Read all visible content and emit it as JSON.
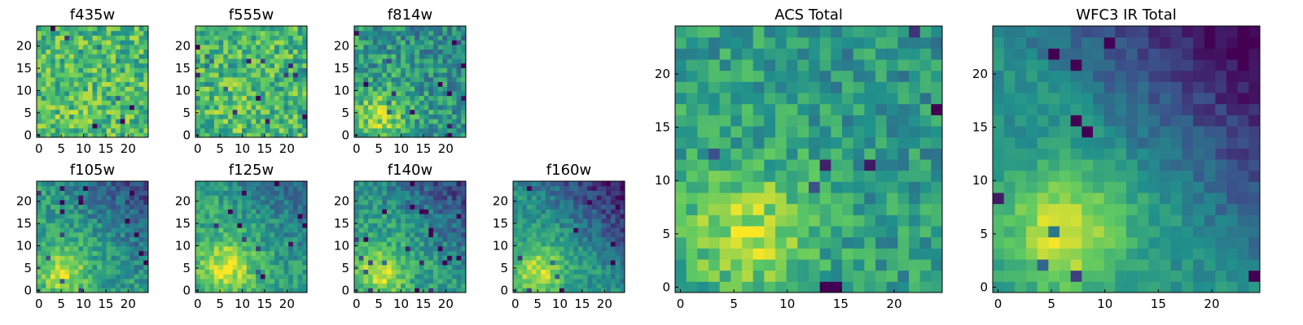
{
  "figure": {
    "colormap": "viridis",
    "colormap_stops": [
      "#440154",
      "#3b528b",
      "#21918c",
      "#5ec962",
      "#fde725"
    ],
    "background": "#ffffff"
  },
  "chart_data": [
    {
      "type": "heatmap",
      "title": "f435w",
      "grid_size": 24,
      "noise": 0.22,
      "bright_spot": [
        6,
        4
      ],
      "bright_strength": 0.05,
      "mean_level": 0.68,
      "dark_corner_strength": 0.0,
      "seed": 11,
      "x_ticks": [
        "0",
        "5",
        "10",
        "15",
        "20"
      ],
      "y_ticks": [
        "0",
        "5",
        "10",
        "15",
        "20"
      ],
      "xlim": [
        0,
        24
      ],
      "ylim": [
        0,
        24
      ]
    },
    {
      "type": "heatmap",
      "title": "f555w",
      "grid_size": 24,
      "noise": 0.22,
      "bright_spot": [
        8,
        6
      ],
      "bright_strength": 0.1,
      "mean_level": 0.66,
      "dark_corner_strength": 0.0,
      "seed": 23,
      "x_ticks": [
        "0",
        "5",
        "10",
        "15",
        "20"
      ],
      "y_ticks": [
        "0",
        "5",
        "10",
        "15",
        "20"
      ],
      "xlim": [
        0,
        24
      ],
      "ylim": [
        0,
        24
      ]
    },
    {
      "type": "heatmap",
      "title": "f814w",
      "grid_size": 24,
      "noise": 0.2,
      "bright_spot": [
        5,
        4
      ],
      "bright_strength": 0.3,
      "mean_level": 0.55,
      "dark_corner_strength": 0.1,
      "seed": 37,
      "x_ticks": [
        "0",
        "5",
        "10",
        "15",
        "20"
      ],
      "y_ticks": [
        "0",
        "5",
        "10",
        "15",
        "20"
      ],
      "xlim": [
        0,
        24
      ],
      "ylim": [
        0,
        24
      ]
    },
    {
      "type": "heatmap",
      "title": "f105w",
      "grid_size": 24,
      "noise": 0.14,
      "bright_spot": [
        5,
        4
      ],
      "bright_strength": 0.35,
      "mean_level": 0.55,
      "dark_corner_strength": 0.3,
      "seed": 41,
      "x_ticks": [
        "0",
        "5",
        "10",
        "15",
        "20"
      ],
      "y_ticks": [
        "0",
        "5",
        "10",
        "15",
        "20"
      ],
      "xlim": [
        0,
        24
      ],
      "ylim": [
        0,
        24
      ]
    },
    {
      "type": "heatmap",
      "title": "f125w",
      "grid_size": 24,
      "noise": 0.14,
      "bright_spot": [
        6,
        5
      ],
      "bright_strength": 0.35,
      "mean_level": 0.6,
      "dark_corner_strength": 0.25,
      "seed": 53,
      "x_ticks": [
        "0",
        "5",
        "10",
        "15",
        "20"
      ],
      "y_ticks": [
        "0",
        "5",
        "10",
        "15",
        "20"
      ],
      "xlim": [
        0,
        24
      ],
      "ylim": [
        0,
        24
      ]
    },
    {
      "type": "heatmap",
      "title": "f140w",
      "grid_size": 24,
      "noise": 0.14,
      "bright_spot": [
        5,
        4
      ],
      "bright_strength": 0.38,
      "mean_level": 0.55,
      "dark_corner_strength": 0.3,
      "seed": 67,
      "x_ticks": [
        "0",
        "5",
        "10",
        "15",
        "20"
      ],
      "y_ticks": [
        "0",
        "5",
        "10",
        "15",
        "20"
      ],
      "xlim": [
        0,
        24
      ],
      "ylim": [
        0,
        24
      ]
    },
    {
      "type": "heatmap",
      "title": "f160w",
      "grid_size": 24,
      "noise": 0.12,
      "bright_spot": [
        5,
        4
      ],
      "bright_strength": 0.4,
      "mean_level": 0.52,
      "dark_corner_strength": 0.4,
      "seed": 79,
      "x_ticks": [
        "0",
        "5",
        "10",
        "15",
        "20"
      ],
      "y_ticks": [
        "0",
        "5",
        "10",
        "15",
        "20"
      ],
      "xlim": [
        0,
        24
      ],
      "ylim": [
        0,
        24
      ]
    },
    {
      "type": "heatmap",
      "title": "ACS Total",
      "grid_size": 24,
      "noise": 0.16,
      "bright_spot": [
        6,
        5
      ],
      "bright_strength": 0.32,
      "mean_level": 0.56,
      "dark_corner_strength": 0.05,
      "seed": 97,
      "x_ticks": [
        "0",
        "5",
        "10",
        "15",
        "20"
      ],
      "y_ticks": [
        "0",
        "5",
        "10",
        "15",
        "20"
      ],
      "xlim": [
        0,
        24
      ],
      "ylim": [
        0,
        24
      ]
    },
    {
      "type": "heatmap",
      "title": "WFC3 IR Total",
      "grid_size": 24,
      "noise": 0.08,
      "bright_spot": [
        6,
        5
      ],
      "bright_strength": 0.45,
      "mean_level": 0.5,
      "dark_corner_strength": 0.45,
      "seed": 113,
      "x_ticks": [
        "0",
        "5",
        "10",
        "15",
        "20"
      ],
      "y_ticks": [
        "0",
        "5",
        "10",
        "15",
        "20"
      ],
      "xlim": [
        0,
        24
      ],
      "ylim": [
        0,
        24
      ]
    }
  ]
}
